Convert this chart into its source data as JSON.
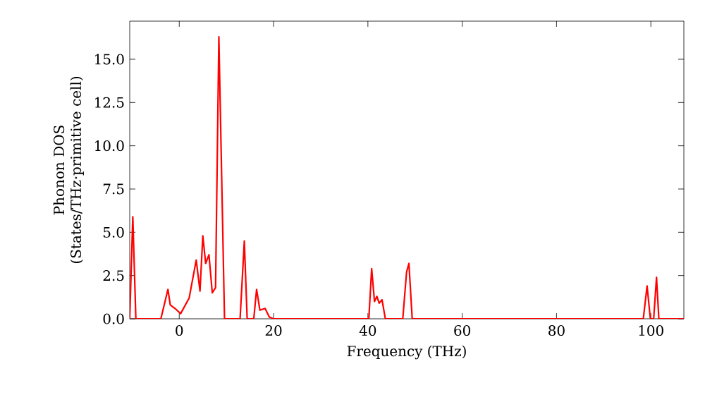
{
  "chart_data": {
    "type": "line",
    "xlabel": "Frequency (THz)",
    "ylabel": "Phonon DOS\n(States/THz·primitive cell)",
    "xlim": [
      -10.5,
      107
    ],
    "ylim": [
      0,
      17.2
    ],
    "xticks": [
      0,
      20,
      40,
      60,
      80,
      100
    ],
    "yticks": [
      {
        "value": 0,
        "label": "0.0"
      },
      {
        "value": 2.5,
        "label": "2.5"
      },
      {
        "value": 5,
        "label": "5.0"
      },
      {
        "value": 7.5,
        "label": "7.5"
      },
      {
        "value": 10,
        "label": "10.0"
      },
      {
        "value": 12.5,
        "label": "12.5"
      },
      {
        "value": 15,
        "label": "15.0"
      }
    ],
    "grid": false,
    "marker": "none",
    "line_style": "solid",
    "series": [
      {
        "color": "#ff0000",
        "x": [
          -10.5,
          -9.85,
          -9.2,
          -3.9,
          -2.4,
          -1.9,
          -0.9,
          0.3,
          2.1,
          3.6,
          4.4,
          5.0,
          5.6,
          6.3,
          7.0,
          7.7,
          8.4,
          9.6,
          12.9,
          13.8,
          14.4,
          15.8,
          16.4,
          17.1,
          18.2,
          19.1,
          20,
          40.2,
          40.8,
          41.4,
          41.9,
          42.4,
          43.0,
          43.7,
          47.4,
          48.2,
          48.7,
          49.4,
          98.4,
          99.2,
          99.9,
          100.6,
          101.2,
          101.7,
          107
        ],
        "values": [
          0,
          5.9,
          0,
          0,
          1.7,
          0.8,
          0.6,
          0.3,
          1.2,
          3.4,
          1.6,
          4.8,
          3.2,
          3.7,
          1.5,
          1.8,
          16.3,
          0,
          0,
          4.5,
          0,
          0,
          1.7,
          0.5,
          0.6,
          0.1,
          0,
          0,
          2.9,
          1.0,
          1.3,
          0.9,
          1.1,
          0,
          0,
          2.7,
          3.2,
          0,
          0,
          1.9,
          0,
          0,
          2.4,
          0,
          0
        ]
      }
    ]
  }
}
